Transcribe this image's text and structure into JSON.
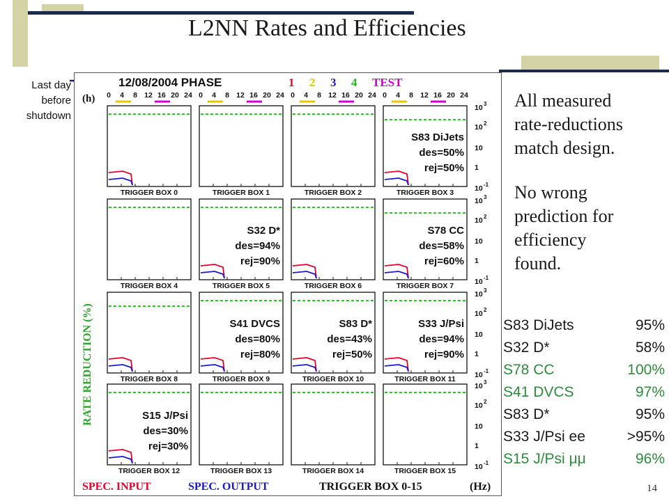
{
  "title": "L2NN Rates and Efficiencies",
  "side_note": [
    "Last day",
    "before",
    "shutdown"
  ],
  "bullets": [
    [
      "All measured",
      "rate-reductions",
      "match design."
    ],
    [
      "No wrong",
      "prediction for",
      "efficiency",
      "found."
    ]
  ],
  "efficiency_table": [
    {
      "name": "S83 DiJets",
      "value": "95%",
      "color": "#1a1a1a"
    },
    {
      "name": "S32 D*",
      "value": "58%",
      "color": "#1a1a1a"
    },
    {
      "name": "S78 CC",
      "value": "100%",
      "color": "#2e8b3e"
    },
    {
      "name": "S41 DVCS",
      "value": "97%",
      "color": "#2e8b3e"
    },
    {
      "name": "S83 D*",
      "value": "95%",
      "color": "#1a1a1a"
    },
    {
      "name": "S33 J/Psi ee",
      "value": ">95%",
      "color": "#1a1a1a"
    },
    {
      "name": "S15 J/Psi μμ",
      "value": "96%",
      "color": "#2e8b3e"
    }
  ],
  "page_number": "14",
  "figure": {
    "header_date": "12/08/2004 PHASE",
    "phases": [
      {
        "label": "1",
        "color": "#e8002a"
      },
      {
        "label": "2",
        "color": "#e6c800"
      },
      {
        "label": "3",
        "color": "#1a1acc"
      },
      {
        "label": "4",
        "color": "#22bb22"
      },
      {
        "label": "TEST",
        "color": "#d000d0"
      }
    ],
    "panel_tag": "(h)",
    "top_ticks": [
      "0",
      "4",
      "8",
      "12",
      "16",
      "20",
      "24"
    ],
    "y_axis_label": "RATE REDUCTION (%)",
    "right_ticks": [
      {
        "base": "10",
        "exp": "3"
      },
      {
        "base": "10",
        "exp": "2"
      },
      {
        "base": "10",
        "exp": ""
      },
      {
        "base": "1",
        "exp": ""
      },
      {
        "base": "10",
        "exp": "-1"
      }
    ],
    "footer": [
      {
        "text": "SPEC. INPUT",
        "color": "#e8002a"
      },
      {
        "text": "SPEC. OUTPUT",
        "color": "#1a1acc"
      },
      {
        "text": "TRIGGER BOX 0-15",
        "color": "#111111"
      },
      {
        "text": "(Hz)",
        "color": "#111111"
      }
    ],
    "boxes": [
      {
        "label": "TRIGGER BOX 0",
        "annotation": []
      },
      {
        "label": "TRIGGER BOX 1",
        "annotation": []
      },
      {
        "label": "TRIGGER BOX 2",
        "annotation": []
      },
      {
        "label": "TRIGGER BOX 3",
        "annotation": [
          "S83 DiJets",
          "des=50%",
          "rej=50%"
        ]
      },
      {
        "label": "TRIGGER BOX 4",
        "annotation": []
      },
      {
        "label": "TRIGGER BOX 5",
        "annotation": [
          "S32 D*",
          "des=94%",
          "rej=90%"
        ]
      },
      {
        "label": "TRIGGER BOX 6",
        "annotation": []
      },
      {
        "label": "TRIGGER BOX 7",
        "annotation": [
          "S78 CC",
          "des=58%",
          "rej=60%"
        ]
      },
      {
        "label": "TRIGGER BOX 8",
        "annotation": []
      },
      {
        "label": "TRIGGER BOX 9",
        "annotation": [
          "S41 DVCS",
          "des=80%",
          "rej=80%"
        ]
      },
      {
        "label": "TRIGGER BOX 10",
        "annotation": [
          "S83 D*",
          "des=43%",
          "rej=50%"
        ]
      },
      {
        "label": "TRIGGER BOX 11",
        "annotation": [
          "S33 J/Psi",
          "des=94%",
          "rej=90%"
        ]
      },
      {
        "label": "TRIGGER BOX 12",
        "annotation": [
          "S15 J/Psi",
          "des=30%",
          "rej=30%"
        ]
      },
      {
        "label": "TRIGGER BOX 13",
        "annotation": []
      },
      {
        "label": "TRIGGER BOX 14",
        "annotation": []
      },
      {
        "label": "TRIGGER BOX 15",
        "annotation": []
      }
    ]
  }
}
